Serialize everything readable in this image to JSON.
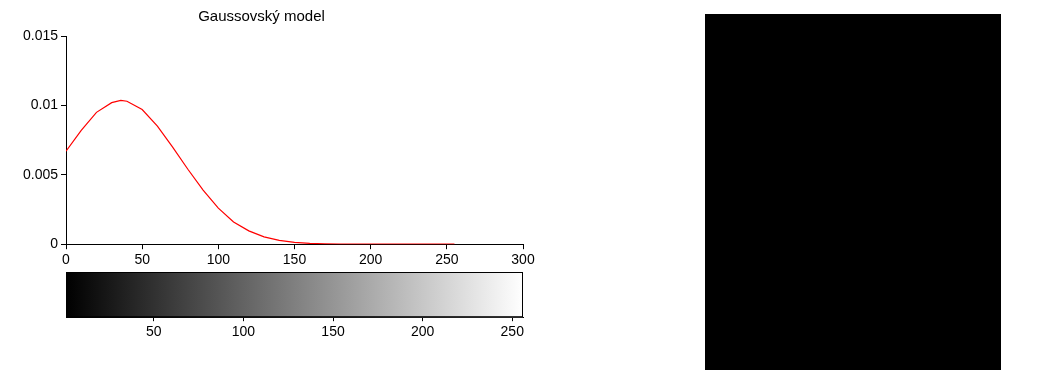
{
  "chart_data": [
    {
      "type": "line",
      "title": "Gaussovský model",
      "x": [
        0,
        10,
        20,
        30,
        36,
        40,
        50,
        60,
        70,
        80,
        90,
        100,
        110,
        120,
        130,
        140,
        150,
        160,
        170,
        180,
        190,
        200,
        210,
        220,
        230,
        240,
        250,
        255
      ],
      "series": [
        {
          "color": "#ff0000",
          "line_style": "solid",
          "marker": "none",
          "values": [
            0.0067,
            0.0082,
            0.0095,
            0.0102,
            0.01036,
            0.0103,
            0.0097,
            0.0085,
            0.007,
            0.0054,
            0.0039,
            0.0026,
            0.0016,
            0.00096,
            0.00053,
            0.00027,
            0.00013,
            6e-05,
            2e-05,
            0,
            0,
            0,
            0,
            0,
            0,
            0,
            0,
            0
          ]
        }
      ],
      "xlim": [
        0,
        300
      ],
      "xticks": [
        0,
        50,
        100,
        150,
        200,
        250,
        300
      ],
      "ylim": [
        0,
        0.015
      ],
      "yticks": [
        0,
        0.005,
        0.01,
        0.015
      ],
      "grid": false,
      "colorbar": {
        "range": [
          1,
          256
        ],
        "ticks": [
          50,
          100,
          150,
          200,
          250
        ],
        "colors": [
          "#000000",
          "#ffffff"
        ]
      }
    }
  ]
}
